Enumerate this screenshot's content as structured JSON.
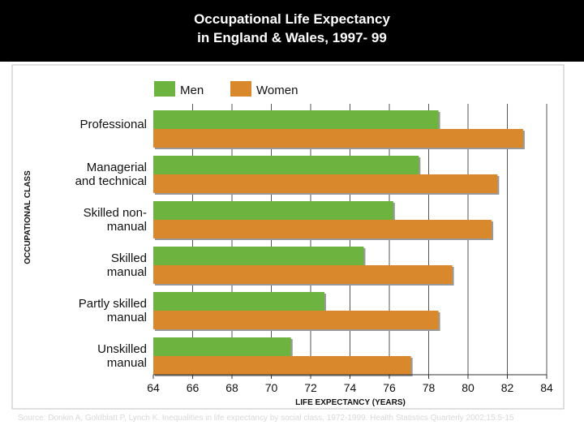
{
  "header": {
    "title_line1": "Occupational Life Expectancy",
    "title_line2": "in England & Wales, 1997- 99"
  },
  "source": {
    "text": "Source: Donkin A, Goldblatt P, Lynch K. Inequalities in life expectancy by social class, 1972-1999. Health Statistics Quarterly 2002;15:5-15"
  },
  "colors": {
    "men": "#6db33f",
    "women": "#d9892b",
    "background_top": "#000000",
    "panel": "#ffffff"
  },
  "chart_data": {
    "type": "bar",
    "orientation": "horizontal",
    "title": "",
    "xlabel": "LIFE EXPECTANCY (YEARS)",
    "ylabel": "OCCUPATIONAL CLASS",
    "xlim": [
      64,
      84
    ],
    "xticks": [
      "64",
      "66",
      "68",
      "70",
      "72",
      "74",
      "76",
      "78",
      "80",
      "82",
      "84"
    ],
    "legend_position": "top",
    "grid": true,
    "categories": [
      {
        "line1": "Professional",
        "line2": ""
      },
      {
        "line1": "Managerial",
        "line2": "and technical"
      },
      {
        "line1": "Skilled non-",
        "line2": "manual"
      },
      {
        "line1": "Skilled",
        "line2": "manual"
      },
      {
        "line1": "Partly skilled",
        "line2": "manual"
      },
      {
        "line1": "Unskilled",
        "line2": "manual"
      }
    ],
    "series": [
      {
        "name": "Men",
        "values": [
          78.5,
          77.5,
          76.2,
          74.7,
          72.7,
          71.0
        ]
      },
      {
        "name": "Women",
        "values": [
          82.8,
          81.5,
          81.2,
          79.2,
          78.5,
          77.1
        ]
      }
    ]
  }
}
